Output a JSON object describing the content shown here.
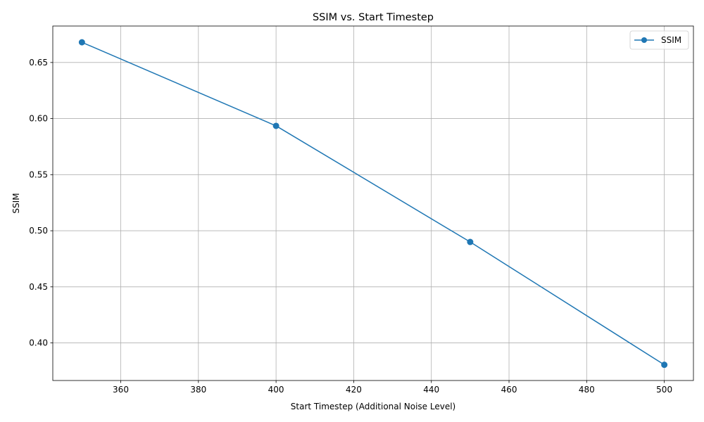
{
  "chart_data": {
    "type": "line",
    "title": "SSIM vs. Start Timestep",
    "xlabel": "Start Timestep (Additional Noise Level)",
    "ylabel": "SSIM",
    "xlim": [
      342.5,
      507.5
    ],
    "ylim": [
      0.3665,
      0.6825
    ],
    "xticks": [
      360,
      380,
      400,
      420,
      440,
      460,
      480,
      500
    ],
    "yticks": [
      0.4,
      0.45,
      0.5,
      0.55,
      0.6,
      0.65
    ],
    "ytick_decimals": 2,
    "grid": true,
    "legend_position": "top-right",
    "series": [
      {
        "name": "SSIM",
        "color": "#1f77b4",
        "marker": "circle",
        "x": [
          350,
          400,
          450,
          500
        ],
        "y": [
          0.668,
          0.5935,
          0.49,
          0.3805
        ]
      }
    ]
  }
}
